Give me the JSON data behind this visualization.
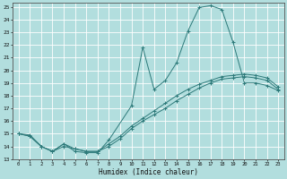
{
  "bg_color": "#b2dede",
  "grid_color": "#ffffff",
  "line_color": "#2d7a7a",
  "xlabel": "Humidex (Indice chaleur)",
  "xmin": 0,
  "xmax": 23,
  "ymin": 13,
  "ymax": 25,
  "line1_x": [
    0,
    1,
    2,
    3,
    4,
    5,
    6,
    7,
    8,
    10,
    11,
    12,
    13,
    14,
    15,
    16,
    17,
    18,
    19,
    20,
    21,
    22,
    23
  ],
  "line1_y": [
    15.0,
    14.8,
    14.0,
    13.6,
    14.2,
    13.6,
    13.5,
    13.5,
    14.5,
    17.2,
    21.8,
    18.5,
    19.2,
    20.6,
    23.1,
    24.95,
    25.1,
    24.8,
    22.2,
    19.0,
    19.0,
    18.8,
    18.4
  ],
  "line2_x": [
    0,
    1,
    2,
    3,
    4,
    5,
    6,
    7,
    8,
    9,
    10,
    11,
    12,
    13,
    14,
    15,
    16,
    17,
    18,
    19,
    20,
    21,
    22,
    23
  ],
  "line2_y": [
    15.0,
    14.8,
    14.0,
    13.6,
    14.0,
    13.8,
    13.6,
    13.6,
    14.0,
    14.6,
    15.4,
    16.0,
    16.5,
    17.0,
    17.6,
    18.1,
    18.6,
    19.0,
    19.3,
    19.4,
    19.5,
    19.4,
    19.2,
    18.5
  ],
  "line3_x": [
    0,
    1,
    2,
    3,
    4,
    5,
    6,
    7,
    8,
    9,
    10,
    11,
    12,
    13,
    14,
    15,
    16,
    17,
    18,
    19,
    20,
    21,
    22,
    23
  ],
  "line3_y": [
    15.0,
    14.9,
    14.0,
    13.6,
    14.2,
    13.8,
    13.6,
    13.6,
    14.2,
    14.8,
    15.6,
    16.2,
    16.8,
    17.4,
    18.0,
    18.5,
    18.9,
    19.2,
    19.5,
    19.6,
    19.7,
    19.6,
    19.4,
    18.7
  ]
}
